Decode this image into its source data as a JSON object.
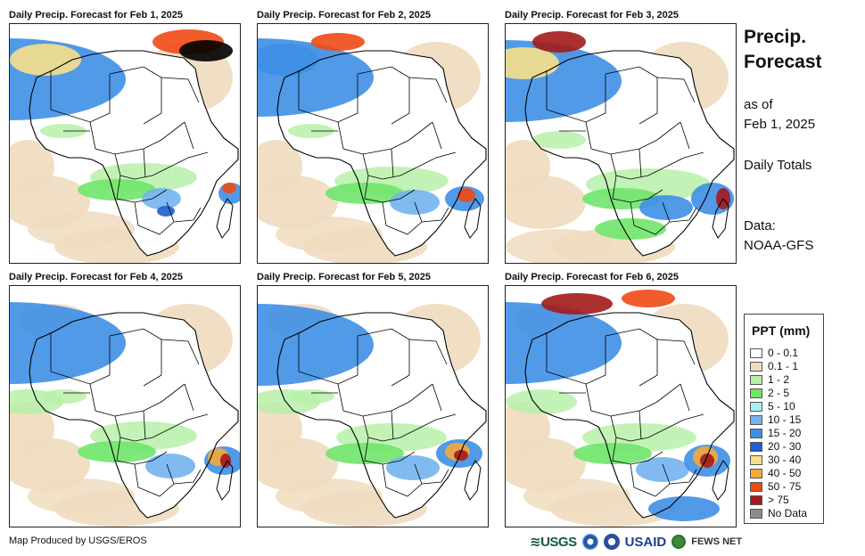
{
  "panels": [
    {
      "title": "Daily Precip. Forecast for Feb 1, 2025"
    },
    {
      "title": "Daily Precip. Forecast for Feb 2, 2025"
    },
    {
      "title": "Daily Precip. Forecast for Feb 3, 2025"
    },
    {
      "title": "Daily Precip. Forecast for Feb 4, 2025"
    },
    {
      "title": "Daily Precip. Forecast for Feb 5, 2025"
    },
    {
      "title": "Daily Precip. Forecast for Feb 6, 2025"
    }
  ],
  "sidebar": {
    "title_line1": "Precip.",
    "title_line2": "Forecast",
    "asof_line1": "as of",
    "asof_line2": "Feb 1, 2025",
    "totals": "Daily Totals",
    "data_line1": "Data:",
    "data_line2": "NOAA-GFS"
  },
  "legend": {
    "title": "PPT (mm)",
    "items": [
      {
        "label": "0 - 0.1",
        "color": "#ffffff"
      },
      {
        "label": "0.1 - 1",
        "color": "#efdcbf"
      },
      {
        "label": "1 - 2",
        "color": "#b7f0a8"
      },
      {
        "label": "2 - 5",
        "color": "#6fe56a"
      },
      {
        "label": "5 - 10",
        "color": "#a9ecf3"
      },
      {
        "label": "10 - 15",
        "color": "#73b3ee"
      },
      {
        "label": "15 - 20",
        "color": "#3e8fe6"
      },
      {
        "label": "20 - 30",
        "color": "#1f5fcf"
      },
      {
        "label": "30 - 40",
        "color": "#f7e08a"
      },
      {
        "label": "40 - 50",
        "color": "#f4a83a"
      },
      {
        "label": "50 - 75",
        "color": "#ee4a14"
      },
      {
        "label": "> 75",
        "color": "#a31a1a"
      },
      {
        "label": "No Data",
        "color": "#8c8c8c"
      }
    ]
  },
  "footer": {
    "credit": "Map Produced by USGS/EROS",
    "logo_usgs": "≋USGS",
    "logo_usaid": "USAID",
    "logo_fews": "FEWS NET"
  }
}
